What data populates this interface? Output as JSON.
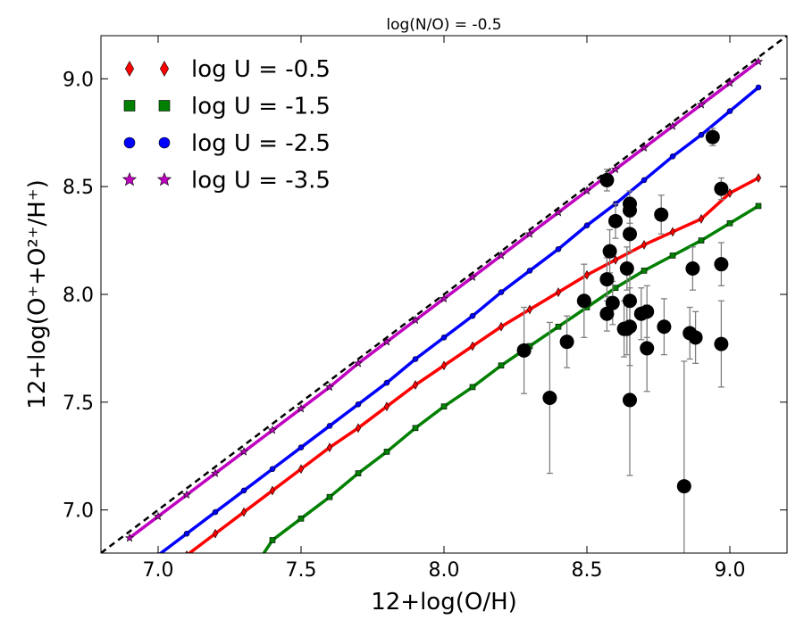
{
  "chart_data": {
    "type": "line",
    "title": "log(N/O) = -0.5",
    "xlabel": "12+log(O/H)",
    "ylabel": "12+log(O⁺+O²⁺/H⁺)",
    "xlim": [
      6.8,
      9.2
    ],
    "ylim": [
      6.8,
      9.2
    ],
    "xticks": [
      "7.0",
      "7.5",
      "8.0",
      "8.5",
      "9.0"
    ],
    "yticks": [
      "7.0",
      "7.5",
      "8.0",
      "8.5",
      "9.0"
    ],
    "legend_position": "upper-left",
    "grid": false,
    "reference_line": {
      "style": "dashed",
      "color": "#000000",
      "x": [
        6.8,
        9.2
      ],
      "y": [
        6.8,
        9.2
      ]
    },
    "series": [
      {
        "name": "log U = -0.5",
        "color": "#ff0000",
        "marker": "diamond",
        "x": [
          7.0,
          7.1,
          7.2,
          7.3,
          7.4,
          7.5,
          7.6,
          7.7,
          7.8,
          7.9,
          8.0,
          8.1,
          8.2,
          8.3,
          8.4,
          8.5,
          8.6,
          8.7,
          8.8,
          8.9,
          9.0,
          9.1
        ],
        "y": [
          6.69,
          6.79,
          6.89,
          6.99,
          7.09,
          7.19,
          7.29,
          7.38,
          7.48,
          7.58,
          7.67,
          7.76,
          7.85,
          7.93,
          8.01,
          8.09,
          8.16,
          8.23,
          8.29,
          8.35,
          8.47,
          8.54
        ]
      },
      {
        "name": "log U = -1.5",
        "color": "#008000",
        "marker": "square",
        "x": [
          7.2,
          7.3,
          7.4,
          7.5,
          7.6,
          7.7,
          7.8,
          7.9,
          8.0,
          8.1,
          8.2,
          8.3,
          8.4,
          8.5,
          8.6,
          8.7,
          8.8,
          8.9,
          9.0,
          9.1
        ],
        "y": [
          6.56,
          6.66,
          6.86,
          6.96,
          7.06,
          7.17,
          7.27,
          7.38,
          7.48,
          7.57,
          7.67,
          7.76,
          7.85,
          7.94,
          8.03,
          8.11,
          8.18,
          8.25,
          8.33,
          8.41
        ]
      },
      {
        "name": "log U = -2.5",
        "color": "#0000ff",
        "marker": "circle",
        "x": [
          6.9,
          7.0,
          7.1,
          7.2,
          7.3,
          7.4,
          7.5,
          7.6,
          7.7,
          7.8,
          7.9,
          8.0,
          8.1,
          8.2,
          8.3,
          8.4,
          8.5,
          8.6,
          8.7,
          8.8,
          8.9,
          9.0,
          9.1
        ],
        "y": [
          6.69,
          6.79,
          6.89,
          6.99,
          7.09,
          7.19,
          7.29,
          7.39,
          7.49,
          7.59,
          7.7,
          7.8,
          7.9,
          8.01,
          8.11,
          8.21,
          8.32,
          8.42,
          8.53,
          8.64,
          8.74,
          8.85,
          8.96
        ]
      },
      {
        "name": "log U = -3.5",
        "color": "#bf00bf",
        "marker": "star",
        "x": [
          6.9,
          7.0,
          7.1,
          7.2,
          7.3,
          7.4,
          7.5,
          7.6,
          7.7,
          7.8,
          7.9,
          8.0,
          8.1,
          8.2,
          8.3,
          8.4,
          8.5,
          8.6,
          8.7,
          8.8,
          8.9,
          9.0,
          9.1
        ],
        "y": [
          6.87,
          6.97,
          7.07,
          7.17,
          7.27,
          7.37,
          7.47,
          7.57,
          7.68,
          7.78,
          7.88,
          7.98,
          8.08,
          8.18,
          8.28,
          8.38,
          8.48,
          8.58,
          8.68,
          8.78,
          8.88,
          8.98,
          9.08
        ]
      }
    ],
    "observations": {
      "color": "#000000",
      "marker": "circle",
      "errorbar_color": "#808080",
      "points": [
        {
          "x": 8.28,
          "y": 7.74,
          "yerr": 0.2
        },
        {
          "x": 8.37,
          "y": 7.52,
          "yerr": 0.35
        },
        {
          "x": 8.43,
          "y": 7.78,
          "yerr": 0.12
        },
        {
          "x": 8.49,
          "y": 7.97,
          "yerr": 0.17
        },
        {
          "x": 8.57,
          "y": 8.53,
          "yerr": 0.05
        },
        {
          "x": 8.57,
          "y": 8.07,
          "yerr": 0.1
        },
        {
          "x": 8.57,
          "y": 7.91,
          "yerr": 0.08
        },
        {
          "x": 8.58,
          "y": 8.2,
          "yerr": 0.1
        },
        {
          "x": 8.59,
          "y": 7.96,
          "yerr": 0.1
        },
        {
          "x": 8.6,
          "y": 8.34,
          "yerr": 0.08
        },
        {
          "x": 8.63,
          "y": 7.84,
          "yerr": 0.13
        },
        {
          "x": 8.64,
          "y": 8.12,
          "yerr": 0.1
        },
        {
          "x": 8.64,
          "y": 7.84,
          "yerr": 0.12
        },
        {
          "x": 8.65,
          "y": 8.42,
          "yerr": 0.06
        },
        {
          "x": 8.65,
          "y": 8.39,
          "yerr": 0.06
        },
        {
          "x": 8.65,
          "y": 8.28,
          "yerr": 0.08
        },
        {
          "x": 8.65,
          "y": 7.97,
          "yerr": 0.13
        },
        {
          "x": 8.65,
          "y": 7.85,
          "yerr": 0.18
        },
        {
          "x": 8.65,
          "y": 7.51,
          "yerr": 0.35
        },
        {
          "x": 8.69,
          "y": 7.91,
          "yerr": 0.12
        },
        {
          "x": 8.71,
          "y": 7.92,
          "yerr": 0.12
        },
        {
          "x": 8.71,
          "y": 7.75,
          "yerr": 0.2
        },
        {
          "x": 8.76,
          "y": 8.37,
          "yerr": 0.09
        },
        {
          "x": 8.77,
          "y": 7.85,
          "yerr": 0.13
        },
        {
          "x": 8.84,
          "y": 7.11,
          "yerr": 0.58
        },
        {
          "x": 8.86,
          "y": 7.82,
          "yerr": 0.12
        },
        {
          "x": 8.87,
          "y": 8.12,
          "yerr": 0.1
        },
        {
          "x": 8.88,
          "y": 7.8,
          "yerr": 0.12
        },
        {
          "x": 8.94,
          "y": 8.73,
          "yerr": 0.04
        },
        {
          "x": 8.97,
          "y": 8.49,
          "yerr": 0.05
        },
        {
          "x": 8.97,
          "y": 8.14,
          "yerr": 0.1
        },
        {
          "x": 8.97,
          "y": 7.77,
          "yerr": 0.2
        }
      ]
    }
  }
}
